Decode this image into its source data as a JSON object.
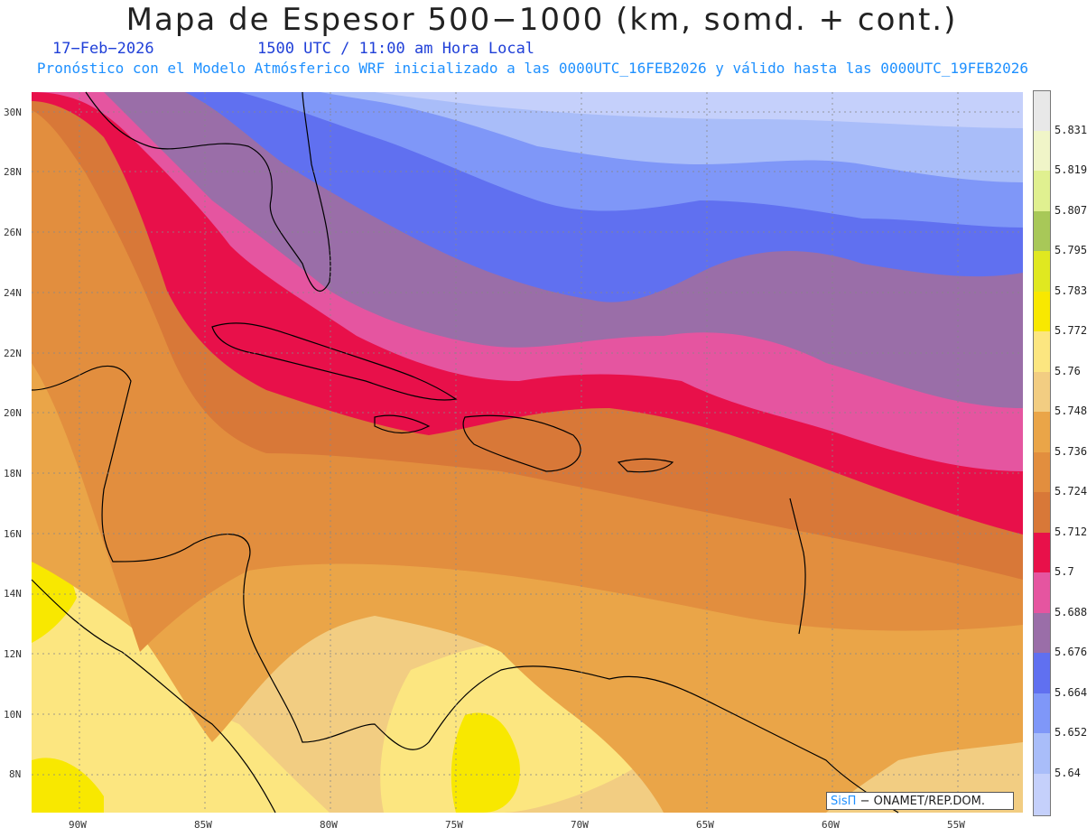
{
  "header": {
    "title": "Mapa de Espesor 500−1000 (km, somd. + cont.)",
    "date": "17−Feb−2026",
    "time": "1500 UTC / 11:00 am Hora Local",
    "forecast": "Pronóstico con el Modelo Atmósferico WRF inicializado a las 0000UTC_16FEB2026 y válido hasta las  0000UTC_19FEB2026"
  },
  "axes": {
    "latitude_labels": [
      "30N",
      "28N",
      "26N",
      "24N",
      "22N",
      "20N",
      "18N",
      "16N",
      "14N",
      "12N",
      "10N",
      "8N"
    ],
    "longitude_labels": [
      "90W",
      "85W",
      "80W",
      "75W",
      "70W",
      "65W",
      "60W",
      "55W"
    ]
  },
  "colorbar": {
    "levels": [
      "5.831",
      "5.819",
      "5.807",
      "5.795",
      "5.783",
      "5.772",
      "5.76",
      "5.748",
      "5.736",
      "5.724",
      "5.712",
      "5.7",
      "5.688",
      "5.676",
      "5.664",
      "5.652",
      "5.64"
    ],
    "colors": [
      "#e8e8e8",
      "#f0f5c8",
      "#e0f090",
      "#a8c858",
      "#e0e820",
      "#f8e800",
      "#fce680",
      "#f2cd82",
      "#eaa548",
      "#e28e3e",
      "#d87838",
      "#e8104a",
      "#e555a0",
      "#9a6ea8",
      "#6070f0",
      "#7f97f8",
      "#a9bdf9",
      "#c5d0fb"
    ]
  },
  "credit": {
    "logo": "SisΠ",
    "text": "− ONAMET/REP.DOM."
  }
}
